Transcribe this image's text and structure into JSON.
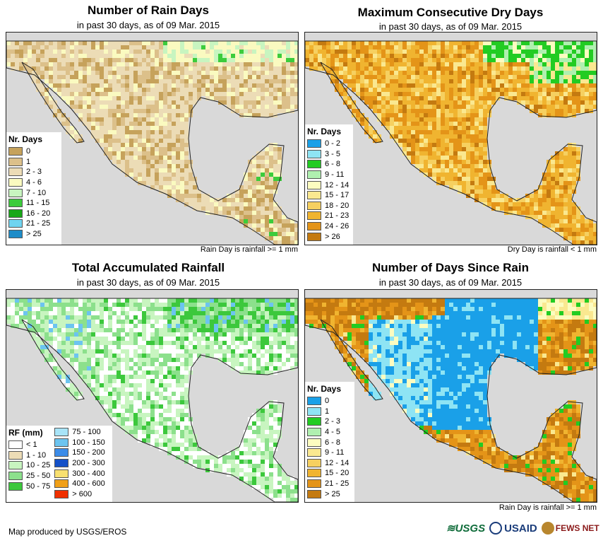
{
  "panels": [
    {
      "title": "Number of Rain Days",
      "subtitle": "in past 30 days, as of 09 Mar. 2015",
      "note": "Rain Day is rainfall >= 1 mm",
      "legend_title": "Nr. Days",
      "legend": [
        {
          "label": "0",
          "color": "#c6a25b"
        },
        {
          "label": "1",
          "color": "#dcc08a"
        },
        {
          "label": "2 - 3",
          "color": "#ecdcb6"
        },
        {
          "label": "4 - 6",
          "color": "#fafac0"
        },
        {
          "label": "7 - 10",
          "color": "#c8f5c0"
        },
        {
          "label": "11 - 15",
          "color": "#3ccc3c"
        },
        {
          "label": "16 - 20",
          "color": "#18a818"
        },
        {
          "label": "21 - 25",
          "color": "#70d4f0"
        },
        {
          "label": "> 25",
          "color": "#1e8cc8"
        }
      ]
    },
    {
      "title": "Maximum Consecutive Dry Days",
      "subtitle": "in past 30 days, as of 09 Mar. 2015",
      "note": "Dry Day is rainfall < 1 mm",
      "legend_title": "Nr. Days",
      "legend": [
        {
          "label": "0 - 2",
          "color": "#1aa0e8"
        },
        {
          "label": "3 - 5",
          "color": "#8ee4f4"
        },
        {
          "label": "6 - 8",
          "color": "#22cc22"
        },
        {
          "label": "9 - 11",
          "color": "#b0f0b0"
        },
        {
          "label": "12 - 14",
          "color": "#fcfcc0"
        },
        {
          "label": "15 - 17",
          "color": "#fae890"
        },
        {
          "label": "18 - 20",
          "color": "#f6d060"
        },
        {
          "label": "21 - 23",
          "color": "#f0b430"
        },
        {
          "label": "24 - 26",
          "color": "#e49418"
        },
        {
          "label": "> 26",
          "color": "#c47a10"
        }
      ]
    },
    {
      "title": "Total Accumulated Rainfall",
      "subtitle": "in past 30 days, as of 09 Mar. 2015",
      "note": "",
      "legend_title": "RF (mm)",
      "legend_col1": [
        {
          "label": "< 1",
          "color": "#ffffff"
        },
        {
          "label": "1 - 10",
          "color": "#ecdcb6"
        },
        {
          "label": "10 - 25",
          "color": "#c8f5c0"
        },
        {
          "label": "25 - 50",
          "color": "#8ce08c"
        },
        {
          "label": "50 - 75",
          "color": "#3cc83c"
        }
      ],
      "legend_col2": [
        {
          "label": "75 - 100",
          "color": "#a8e4f8"
        },
        {
          "label": "100 - 150",
          "color": "#6cc4f0"
        },
        {
          "label": "150 - 200",
          "color": "#3c8ce8"
        },
        {
          "label": "200 - 300",
          "color": "#1450c8"
        },
        {
          "label": "300 - 400",
          "color": "#f8e070"
        },
        {
          "label": "400 - 600",
          "color": "#f0a018"
        },
        {
          "label": "> 600",
          "color": "#f03000"
        }
      ]
    },
    {
      "title": "Number of Days Since Rain",
      "subtitle": "in past 30 days, as of 09 Mar. 2015",
      "note": "Rain Day is rainfall >= 1 mm",
      "legend_title": "Nr. Days",
      "legend": [
        {
          "label": "0",
          "color": "#1aa0e8"
        },
        {
          "label": "1",
          "color": "#8ee4f4"
        },
        {
          "label": "2 - 3",
          "color": "#22cc22"
        },
        {
          "label": "4 - 5",
          "color": "#b0f0b0"
        },
        {
          "label": "6 - 8",
          "color": "#fcfcc0"
        },
        {
          "label": "9 - 11",
          "color": "#fae890"
        },
        {
          "label": "12 - 14",
          "color": "#f6d060"
        },
        {
          "label": "15 - 20",
          "color": "#f0b430"
        },
        {
          "label": "21 - 25",
          "color": "#e49418"
        },
        {
          "label": "> 25",
          "color": "#c47a10"
        }
      ]
    }
  ],
  "footer": {
    "credit": "Map produced by USGS/EROS",
    "logos": [
      "USGS",
      "USAID",
      "FEWS NET"
    ]
  },
  "colors": {
    "ocean": "#d9d9d9",
    "border": "#222222"
  }
}
